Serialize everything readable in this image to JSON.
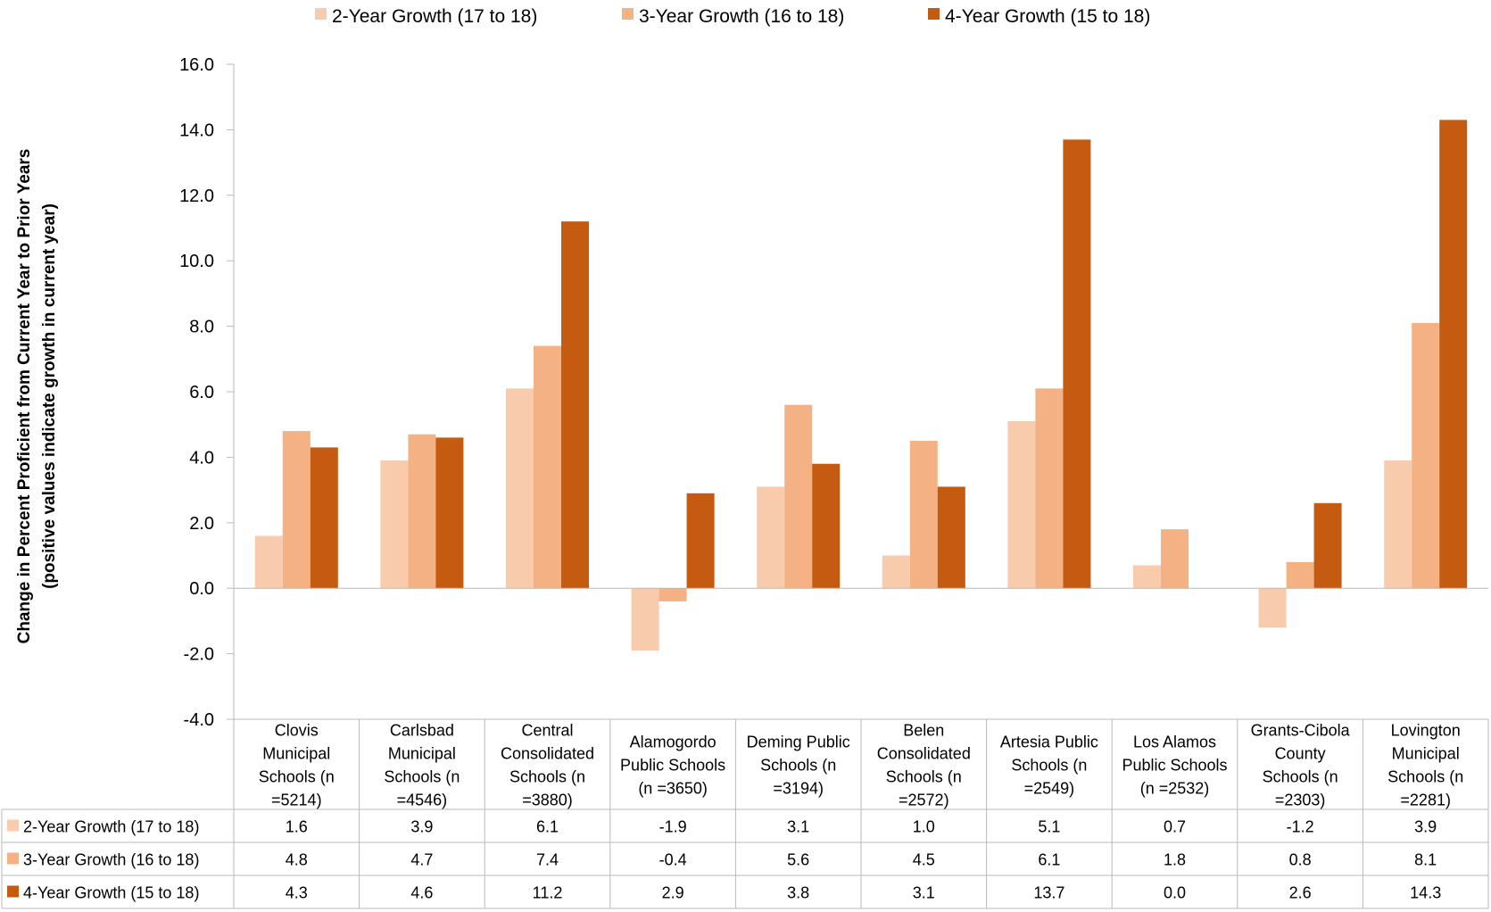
{
  "chart_data": {
    "type": "bar",
    "ylabel": "Change in Percent Proficient from Current Year to Prior Years",
    "ylabel2": "(positive values indicate growth in current year)",
    "ylim": [
      -4,
      16
    ],
    "yticks": [
      "16.0",
      "14.0",
      "12.0",
      "10.0",
      "8.0",
      "6.0",
      "4.0",
      "2.0",
      "0.0",
      "-2.0",
      "-4.0"
    ],
    "legend_position": "top",
    "categories": [
      [
        "Clovis",
        "Municipal",
        "Schools (n",
        "=5214)"
      ],
      [
        "Carlsbad",
        "Municipal",
        "Schools (n",
        "=4546)"
      ],
      [
        "Central",
        "Consolidated",
        "Schools (n",
        "=3880)"
      ],
      [
        "Alamogordo",
        "Public Schools",
        "(n =3650)"
      ],
      [
        "Deming Public",
        "Schools (n",
        "=3194)"
      ],
      [
        "Belen",
        "Consolidated",
        "Schools (n",
        "=2572)"
      ],
      [
        "Artesia Public",
        "Schools (n",
        "=2549)"
      ],
      [
        "Los Alamos",
        "Public Schools",
        "(n =2532)"
      ],
      [
        "Grants-Cibola",
        "County",
        "Schools (n",
        "=2303)"
      ],
      [
        "Lovington",
        "Municipal",
        "Schools (n",
        "=2281)"
      ]
    ],
    "series": [
      {
        "name": "2-Year Growth (17 to 18)",
        "color": "#f8cbad",
        "values": [
          1.6,
          3.9,
          6.1,
          -1.9,
          3.1,
          1.0,
          5.1,
          0.7,
          -1.2,
          3.9
        ],
        "labels": [
          "1.6",
          "3.9",
          "6.1",
          "-1.9",
          "3.1",
          "1.0",
          "5.1",
          "0.7",
          "-1.2",
          "3.9"
        ]
      },
      {
        "name": "3-Year Growth (16 to 18)",
        "color": "#f4b183",
        "values": [
          4.8,
          4.7,
          7.4,
          -0.4,
          5.6,
          4.5,
          6.1,
          1.8,
          0.8,
          8.1
        ],
        "labels": [
          "4.8",
          "4.7",
          "7.4",
          "-0.4",
          "5.6",
          "4.5",
          "6.1",
          "1.8",
          "0.8",
          "8.1"
        ]
      },
      {
        "name": "4-Year Growth (15 to 18)",
        "color": "#c55a11",
        "values": [
          4.3,
          4.6,
          11.2,
          2.9,
          3.8,
          3.1,
          13.7,
          0.0,
          2.6,
          14.3
        ],
        "labels": [
          "4.3",
          "4.6",
          "11.2",
          "2.9",
          "3.8",
          "3.1",
          "13.7",
          "0.0",
          "2.6",
          "14.3"
        ]
      }
    ]
  }
}
